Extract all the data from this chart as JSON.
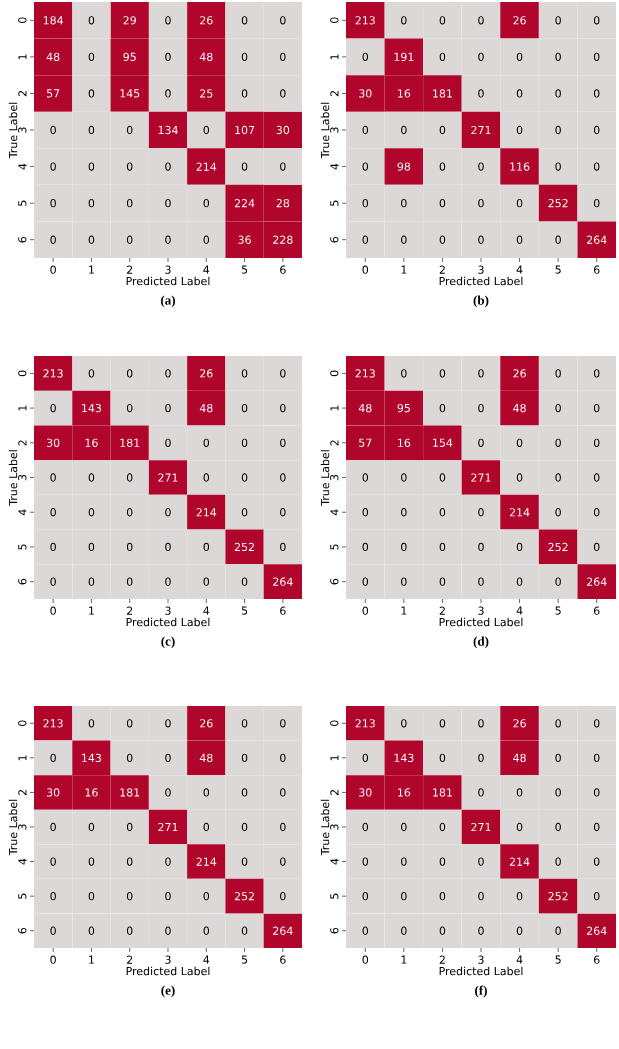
{
  "chart_data": [
    {
      "type": "heatmap",
      "title": "(a)",
      "xlabel": "Predicted Label",
      "ylabel": "True Label",
      "categories": [
        "0",
        "1",
        "2",
        "3",
        "4",
        "5",
        "6"
      ],
      "y_categories": [
        "0",
        "1",
        "2",
        "3",
        "4",
        "5",
        "6"
      ],
      "colors": [
        "#dcd8d8",
        "#b0062c"
      ],
      "data_labels": true,
      "cells": [
        [
          184,
          0,
          29,
          0,
          26,
          0,
          0
        ],
        [
          48,
          0,
          95,
          0,
          48,
          0,
          0
        ],
        [
          57,
          0,
          145,
          0,
          25,
          0,
          0
        ],
        [
          0,
          0,
          0,
          134,
          0,
          107,
          30
        ],
        [
          0,
          0,
          0,
          0,
          214,
          0,
          0
        ],
        [
          0,
          0,
          0,
          0,
          0,
          224,
          28
        ],
        [
          0,
          0,
          0,
          0,
          0,
          36,
          228
        ]
      ]
    },
    {
      "type": "heatmap",
      "title": "(b)",
      "xlabel": "Predicted Label",
      "ylabel": "True Label",
      "categories": [
        "0",
        "1",
        "2",
        "3",
        "4",
        "5",
        "6"
      ],
      "y_categories": [
        "0",
        "1",
        "2",
        "3",
        "4",
        "5",
        "6"
      ],
      "colors": [
        "#dcd8d8",
        "#b0062c"
      ],
      "data_labels": true,
      "cells": [
        [
          213,
          0,
          0,
          0,
          26,
          0,
          0
        ],
        [
          0,
          191,
          0,
          0,
          0,
          0,
          0
        ],
        [
          30,
          16,
          181,
          0,
          0,
          0,
          0
        ],
        [
          0,
          0,
          0,
          271,
          0,
          0,
          0
        ],
        [
          0,
          98,
          0,
          0,
          116,
          0,
          0
        ],
        [
          0,
          0,
          0,
          0,
          0,
          252,
          0
        ],
        [
          0,
          0,
          0,
          0,
          0,
          0,
          264
        ]
      ]
    },
    {
      "type": "heatmap",
      "title": "(c)",
      "xlabel": "Predicted Label",
      "ylabel": "True Label",
      "categories": [
        "0",
        "1",
        "2",
        "3",
        "4",
        "5",
        "6"
      ],
      "y_categories": [
        "0",
        "1",
        "2",
        "3",
        "4",
        "5",
        "6"
      ],
      "colors": [
        "#dcd8d8",
        "#b0062c"
      ],
      "data_labels": true,
      "cells": [
        [
          213,
          0,
          0,
          0,
          26,
          0,
          0
        ],
        [
          0,
          143,
          0,
          0,
          48,
          0,
          0
        ],
        [
          30,
          16,
          181,
          0,
          0,
          0,
          0
        ],
        [
          0,
          0,
          0,
          271,
          0,
          0,
          0
        ],
        [
          0,
          0,
          0,
          0,
          214,
          0,
          0
        ],
        [
          0,
          0,
          0,
          0,
          0,
          252,
          0
        ],
        [
          0,
          0,
          0,
          0,
          0,
          0,
          264
        ]
      ]
    },
    {
      "type": "heatmap",
      "title": "(d)",
      "xlabel": "Predicted Label",
      "ylabel": "True Label",
      "categories": [
        "0",
        "1",
        "2",
        "3",
        "4",
        "5",
        "6"
      ],
      "y_categories": [
        "0",
        "1",
        "2",
        "3",
        "4",
        "5",
        "6"
      ],
      "colors": [
        "#dcd8d8",
        "#b0062c"
      ],
      "data_labels": true,
      "cells": [
        [
          213,
          0,
          0,
          0,
          26,
          0,
          0
        ],
        [
          48,
          95,
          0,
          0,
          48,
          0,
          0
        ],
        [
          57,
          16,
          154,
          0,
          0,
          0,
          0
        ],
        [
          0,
          0,
          0,
          271,
          0,
          0,
          0
        ],
        [
          0,
          0,
          0,
          0,
          214,
          0,
          0
        ],
        [
          0,
          0,
          0,
          0,
          0,
          252,
          0
        ],
        [
          0,
          0,
          0,
          0,
          0,
          0,
          264
        ]
      ]
    },
    {
      "type": "heatmap",
      "title": "(e)",
      "xlabel": "Predicted Label",
      "ylabel": "True Label",
      "categories": [
        "0",
        "1",
        "2",
        "3",
        "4",
        "5",
        "6"
      ],
      "y_categories": [
        "0",
        "1",
        "2",
        "3",
        "4",
        "5",
        "6"
      ],
      "colors": [
        "#dcd8d8",
        "#b0062c"
      ],
      "data_labels": true,
      "cells": [
        [
          213,
          0,
          0,
          0,
          26,
          0,
          0
        ],
        [
          0,
          143,
          0,
          0,
          48,
          0,
          0
        ],
        [
          30,
          16,
          181,
          0,
          0,
          0,
          0
        ],
        [
          0,
          0,
          0,
          271,
          0,
          0,
          0
        ],
        [
          0,
          0,
          0,
          0,
          214,
          0,
          0
        ],
        [
          0,
          0,
          0,
          0,
          0,
          252,
          0
        ],
        [
          0,
          0,
          0,
          0,
          0,
          0,
          264
        ]
      ]
    },
    {
      "type": "heatmap",
      "title": "(f)",
      "xlabel": "Predicted Label",
      "ylabel": "True Label",
      "categories": [
        "0",
        "1",
        "2",
        "3",
        "4",
        "5",
        "6"
      ],
      "y_categories": [
        "0",
        "1",
        "2",
        "3",
        "4",
        "5",
        "6"
      ],
      "colors": [
        "#dcd8d8",
        "#b0062c"
      ],
      "data_labels": true,
      "cells": [
        [
          213,
          0,
          0,
          0,
          26,
          0,
          0
        ],
        [
          0,
          143,
          0,
          0,
          48,
          0,
          0
        ],
        [
          30,
          16,
          181,
          0,
          0,
          0,
          0
        ],
        [
          0,
          0,
          0,
          271,
          0,
          0,
          0
        ],
        [
          0,
          0,
          0,
          0,
          214,
          0,
          0
        ],
        [
          0,
          0,
          0,
          0,
          0,
          252,
          0
        ],
        [
          0,
          0,
          0,
          0,
          0,
          0,
          264
        ]
      ]
    }
  ]
}
